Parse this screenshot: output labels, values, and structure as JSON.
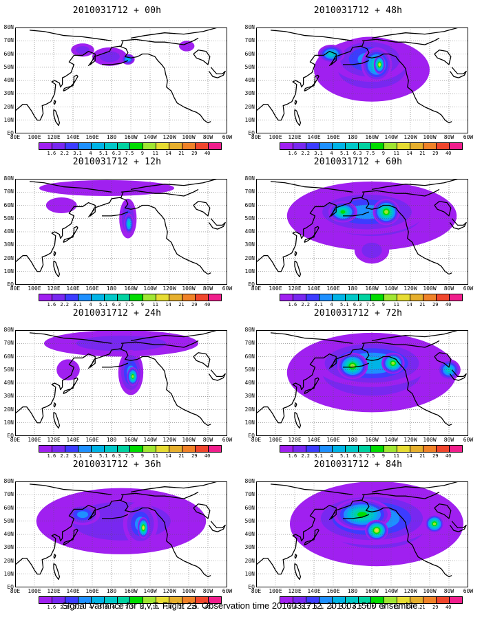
{
  "panels": [
    {
      "title": "2010031712 + 00h",
      "blobs": [
        {
          "lon": 178,
          "lat": 58,
          "rx": 18,
          "ry": 7,
          "lv": 1
        },
        {
          "lon": 197,
          "lat": 56,
          "rx": 7,
          "ry": 4,
          "lv": 4
        },
        {
          "lon": 150,
          "lat": 63,
          "rx": 12,
          "ry": 5,
          "lv": 1
        },
        {
          "lon": 258,
          "lat": 66,
          "rx": 8,
          "ry": 4,
          "lv": 0
        }
      ]
    },
    {
      "title": "2010031712 + 48h",
      "blobs": [
        {
          "lon": 200,
          "lat": 48,
          "rx": 60,
          "ry": 24,
          "lv": 1
        },
        {
          "lon": 198,
          "lat": 56,
          "rx": 40,
          "ry": 17,
          "lv": 3
        },
        {
          "lon": 205,
          "lat": 52,
          "rx": 16,
          "ry": 13,
          "lv": 6
        },
        {
          "lon": 208,
          "lat": 52,
          "rx": 6,
          "ry": 7,
          "lv": 9
        },
        {
          "lon": 158,
          "lat": 60,
          "rx": 14,
          "ry": 7,
          "lv": 5
        }
      ]
    },
    {
      "title": "2010031712 + 12h",
      "blobs": [
        {
          "lon": 175,
          "lat": 73,
          "rx": 70,
          "ry": 6,
          "lv": 0
        },
        {
          "lon": 197,
          "lat": 50,
          "rx": 9,
          "ry": 15,
          "lv": 2
        },
        {
          "lon": 198,
          "lat": 46,
          "rx": 5,
          "ry": 8,
          "lv": 5
        },
        {
          "lon": 128,
          "lat": 60,
          "rx": 16,
          "ry": 6,
          "lv": 0
        }
      ]
    },
    {
      "title": "2010031712 + 60h",
      "blobs": [
        {
          "lon": 200,
          "lat": 52,
          "rx": 88,
          "ry": 26,
          "lv": 1
        },
        {
          "lon": 195,
          "lat": 55,
          "rx": 60,
          "ry": 17,
          "lv": 3
        },
        {
          "lon": 170,
          "lat": 55,
          "rx": 15,
          "ry": 8,
          "lv": 7
        },
        {
          "lon": 215,
          "lat": 55,
          "rx": 14,
          "ry": 10,
          "lv": 8
        },
        {
          "lon": 200,
          "lat": 26,
          "rx": 18,
          "ry": 10,
          "lv": 1
        }
      ]
    },
    {
      "title": "2010031712 + 24h",
      "blobs": [
        {
          "lon": 190,
          "lat": 70,
          "rx": 80,
          "ry": 10,
          "lv": 1
        },
        {
          "lon": 200,
          "lat": 48,
          "rx": 13,
          "ry": 17,
          "lv": 3
        },
        {
          "lon": 202,
          "lat": 45,
          "rx": 6,
          "ry": 7,
          "lv": 8
        },
        {
          "lon": 135,
          "lat": 50,
          "rx": 12,
          "ry": 8,
          "lv": 0
        }
      ]
    },
    {
      "title": "2010031712 + 72h",
      "blobs": [
        {
          "lon": 200,
          "lat": 48,
          "rx": 88,
          "ry": 30,
          "lv": 1
        },
        {
          "lon": 200,
          "lat": 55,
          "rx": 60,
          "ry": 18,
          "lv": 4
        },
        {
          "lon": 180,
          "lat": 53,
          "rx": 16,
          "ry": 10,
          "lv": 8
        },
        {
          "lon": 222,
          "lat": 55,
          "rx": 12,
          "ry": 8,
          "lv": 8
        },
        {
          "lon": 280,
          "lat": 50,
          "rx": 12,
          "ry": 8,
          "lv": 5
        }
      ]
    },
    {
      "title": "2010031712 + 36h",
      "blobs": [
        {
          "lon": 190,
          "lat": 50,
          "rx": 88,
          "ry": 25,
          "lv": 1
        },
        {
          "lon": 210,
          "lat": 48,
          "rx": 18,
          "ry": 17,
          "lv": 3
        },
        {
          "lon": 213,
          "lat": 45,
          "rx": 6,
          "ry": 8,
          "lv": 9
        },
        {
          "lon": 150,
          "lat": 55,
          "rx": 18,
          "ry": 8,
          "lv": 3
        }
      ]
    },
    {
      "title": "2010031712 + 84h",
      "blobs": [
        {
          "lon": 205,
          "lat": 48,
          "rx": 90,
          "ry": 32,
          "lv": 1
        },
        {
          "lon": 200,
          "lat": 52,
          "rx": 65,
          "ry": 20,
          "lv": 4
        },
        {
          "lon": 190,
          "lat": 55,
          "rx": 30,
          "ry": 12,
          "lv": 7
        },
        {
          "lon": 205,
          "lat": 43,
          "rx": 12,
          "ry": 8,
          "lv": 9
        },
        {
          "lon": 265,
          "lat": 48,
          "rx": 10,
          "ry": 7,
          "lv": 8
        }
      ]
    }
  ],
  "lon_labels": [
    "80E",
    "100E",
    "120E",
    "140E",
    "160E",
    "180",
    "160W",
    "140W",
    "120W",
    "100W",
    "80W",
    "60W"
  ],
  "lat_labels": [
    "EQ",
    "10N",
    "20N",
    "30N",
    "40N",
    "50N",
    "60N",
    "70N",
    "80N"
  ],
  "colorbar": {
    "labels": [
      "1.6",
      "2.2",
      "3.1",
      "4",
      "5.1",
      "6.3",
      "7.5",
      "9",
      "11",
      "14",
      "21",
      "29",
      "40"
    ],
    "colors": [
      "#a020f0",
      "#7828f0",
      "#3c3cff",
      "#1e90ff",
      "#00b4e6",
      "#00c8c8",
      "#00d2a0",
      "#00dc00",
      "#a0e632",
      "#e6dc32",
      "#e6af2d",
      "#f08228",
      "#f0462d",
      "#f01e8c"
    ]
  },
  "caption": "Signal Variance for u,v,T. Flight 23. Observation time 2010031712. 2010031500 ensemble."
}
